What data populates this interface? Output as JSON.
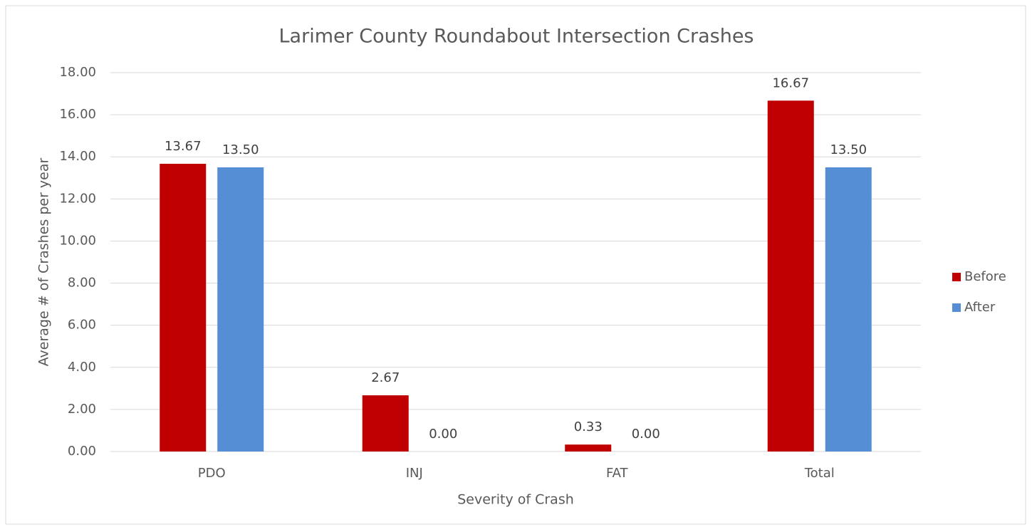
{
  "chart_data": {
    "type": "bar",
    "title": "Larimer County Roundabout Intersection Crashes",
    "x_label": "Severity of Crash",
    "y_label": "Average # of Crashes per year",
    "categories": [
      "PDO",
      "INJ",
      "FAT",
      "Total"
    ],
    "series": [
      {
        "name": "Before",
        "color": "#c00000",
        "values": [
          13.67,
          2.67,
          0.33,
          16.67
        ],
        "value_labels": [
          "13.67",
          "2.67",
          "0.33",
          "16.67"
        ]
      },
      {
        "name": "After",
        "color": "#558ed5",
        "values": [
          13.5,
          0,
          0,
          13.5
        ],
        "value_labels": [
          "13.50",
          "0.00",
          "0.00",
          "13.50"
        ]
      }
    ],
    "ylim": [
      0,
      18
    ],
    "yticks": [
      {
        "value": 0,
        "label": "0.00"
      },
      {
        "value": 2,
        "label": "2.00"
      },
      {
        "value": 4,
        "label": "4.00"
      },
      {
        "value": 6,
        "label": "6.00"
      },
      {
        "value": 8,
        "label": "8.00"
      },
      {
        "value": 10,
        "label": "10.00"
      },
      {
        "value": 12,
        "label": "12.00"
      },
      {
        "value": 14,
        "label": "14.00"
      },
      {
        "value": 16,
        "label": "16.00"
      },
      {
        "value": 18,
        "label": "18.00"
      }
    ],
    "grid": true,
    "legend": "right"
  }
}
